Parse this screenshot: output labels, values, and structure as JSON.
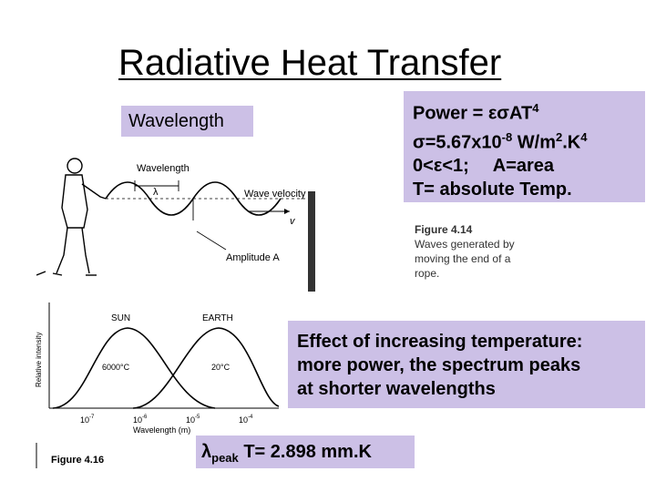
{
  "slide": {
    "title": "Radiative Heat Transfer",
    "wavelength_label": "Wavelength",
    "formula": {
      "power_prefix": "Power = ",
      "power_symbols": "εσ",
      "power_term": "AT",
      "power_exp": "4",
      "sigma_symbol": "σ",
      "sigma_value": "=5.67x10",
      "sigma_exp": "-8",
      "sigma_units_a": " W/m",
      "sigma_units_exp1": "2",
      "sigma_units_b": ".K",
      "sigma_units_exp2": "4",
      "epsilon_range_a": "0<",
      "epsilon_symbol": "ε",
      "epsilon_range_b": "<1;",
      "area_def": "A=area",
      "temp_def": "T= absolute Temp."
    },
    "effect_text_lines": [
      "Effect of increasing temperature:",
      "more power, the spectrum peaks",
      "at shorter wavelengths"
    ],
    "wien": {
      "lambda_symbol": "λ",
      "sub": "peak",
      "rest": " T= 2.898 mm.K"
    }
  },
  "wave_figure": {
    "wavelength_label": "Wavelength",
    "lambda_label": "λ",
    "velocity_label": "Wave velocity",
    "velocity_symbol": "v",
    "amplitude_label": "Amplitude A",
    "caption_title": "Figure 4.14",
    "caption_lines": [
      "Waves generated by",
      "moving the end of a",
      "rope."
    ]
  },
  "spectrum_figure": {
    "ylabel": "Relative intensity",
    "sun_label": "SUN",
    "earth_label": "EARTH",
    "sun_temp": "6000°C",
    "earth_temp": "20°C",
    "ticks": [
      "10",
      "10",
      "10",
      "10"
    ],
    "tick_exps": [
      "-7",
      "-6",
      "-5",
      "-4"
    ],
    "xlabel": "Wavelength (m)",
    "caption": "Figure 4.16"
  }
}
